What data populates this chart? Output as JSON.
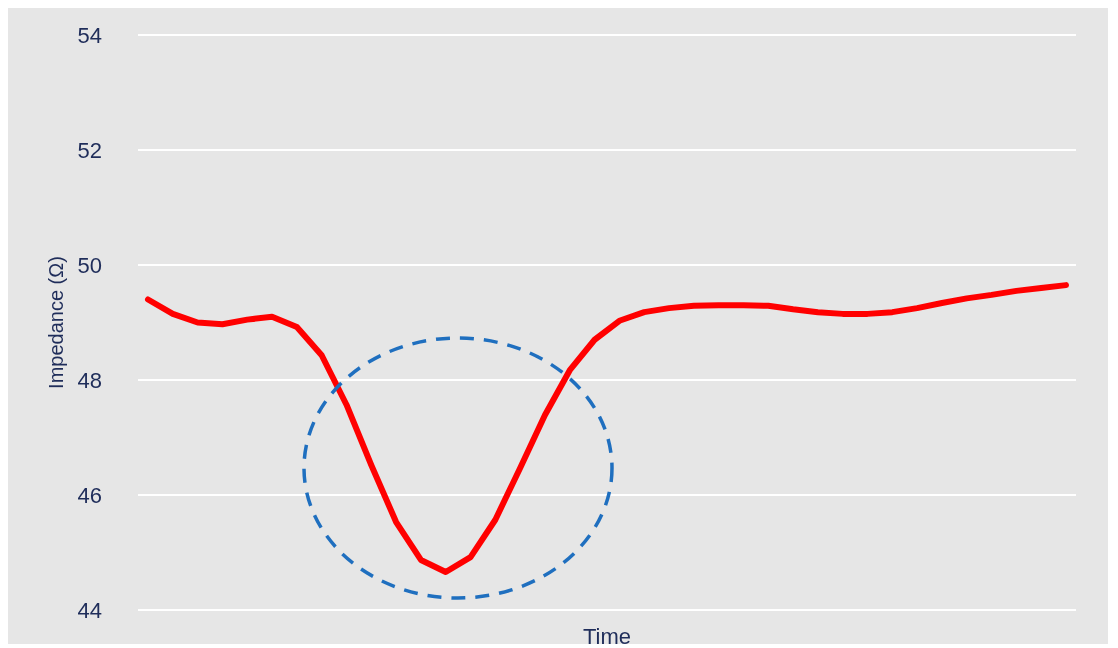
{
  "chart_data": {
    "type": "line",
    "xlabel": "Time",
    "ylabel": "Impedance (Ω)",
    "categories": [
      null,
      null,
      null,
      null,
      null,
      null,
      null,
      null,
      null,
      null,
      null,
      null,
      null,
      null,
      null,
      null,
      null,
      null,
      null,
      null,
      null,
      null,
      null,
      null,
      null,
      null,
      null,
      null,
      null,
      null,
      null,
      null,
      null,
      null,
      null,
      null,
      null,
      null
    ],
    "series": [
      {
        "color": "#ff0000",
        "values": [
          49.4,
          49.15,
          49.0,
          48.97,
          49.05,
          49.1,
          48.92,
          48.43,
          47.57,
          46.52,
          45.53,
          44.87,
          44.66,
          44.92,
          45.57,
          46.47,
          47.39,
          48.17,
          48.7,
          49.03,
          49.18,
          49.25,
          49.29,
          49.3,
          49.3,
          49.29,
          49.23,
          49.18,
          49.15,
          49.15,
          49.18,
          49.25,
          49.34,
          49.42,
          49.48,
          49.55,
          49.6,
          49.65
        ]
      }
    ],
    "ylim": [
      44,
      54
    ],
    "yticks": [
      44,
      46,
      48,
      50,
      52,
      54
    ],
    "grid": "y",
    "marker": "none",
    "line_style": "solid",
    "tick_labels": "y"
  }
}
